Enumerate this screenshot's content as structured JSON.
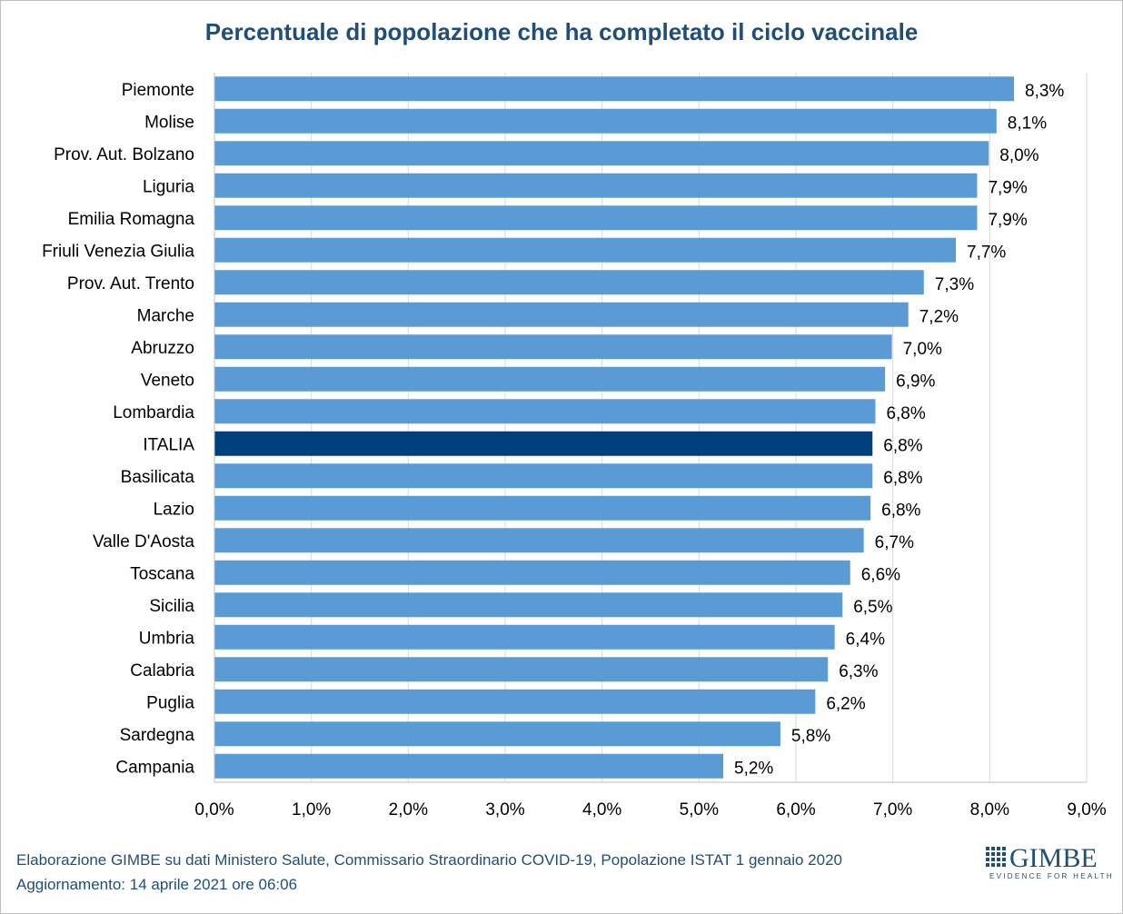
{
  "title": "Percentuale di popolazione che ha completato il ciclo vaccinale",
  "footer": {
    "line1": "Elaborazione GIMBE su dati Ministero Salute, Commissario Straordinario COVID-19, Popolazione ISTAT 1 gennaio 2020",
    "line2": "Aggiornamento: 14 aprile 2021 ore 06:06"
  },
  "logo": {
    "word": "GIMBE",
    "tagline": "EVIDENCE FOR HEALTH",
    "icon": "grid-logo-icon"
  },
  "colors": {
    "bar": "#5b9bd5",
    "highlight": "#003f7f",
    "title": "#1f4e79",
    "grid": "#d9d9d9"
  },
  "chart_data": {
    "type": "bar",
    "orientation": "horizontal",
    "title": "Percentuale di popolazione che ha completato il ciclo vaccinale",
    "categories": [
      "Piemonte",
      "Molise",
      "Prov. Aut. Bolzano",
      "Liguria",
      "Emilia Romagna",
      "Friuli Venezia Giulia",
      "Prov. Aut. Trento",
      "Marche",
      "Abruzzo",
      "Veneto",
      "Lombardia",
      "ITALIA",
      "Basilicata",
      "Lazio",
      "Valle D'Aosta",
      "Toscana",
      "Sicilia",
      "Umbria",
      "Calabria",
      "Puglia",
      "Sardegna",
      "Campania"
    ],
    "values": [
      8.25,
      8.07,
      7.99,
      7.87,
      7.87,
      7.65,
      7.32,
      7.16,
      6.99,
      6.92,
      6.82,
      6.79,
      6.79,
      6.77,
      6.7,
      6.56,
      6.48,
      6.4,
      6.33,
      6.2,
      5.84,
      5.25
    ],
    "value_labels": [
      "8,3%",
      "8,1%",
      "8,0%",
      "7,9%",
      "7,9%",
      "7,7%",
      "7,3%",
      "7,2%",
      "7,0%",
      "6,9%",
      "6,8%",
      "6,8%",
      "6,8%",
      "6,8%",
      "6,7%",
      "6,6%",
      "6,5%",
      "6,4%",
      "6,3%",
      "6,2%",
      "5,8%",
      "5,2%"
    ],
    "highlight": "ITALIA",
    "xlim": [
      0,
      9
    ],
    "xticks": [
      0,
      1,
      2,
      3,
      4,
      5,
      6,
      7,
      8,
      9
    ],
    "xtick_labels": [
      "0,0%",
      "1,0%",
      "2,0%",
      "3,0%",
      "4,0%",
      "5,0%",
      "6,0%",
      "7,0%",
      "8,0%",
      "9,0%"
    ],
    "grid": true,
    "legend": "none"
  }
}
